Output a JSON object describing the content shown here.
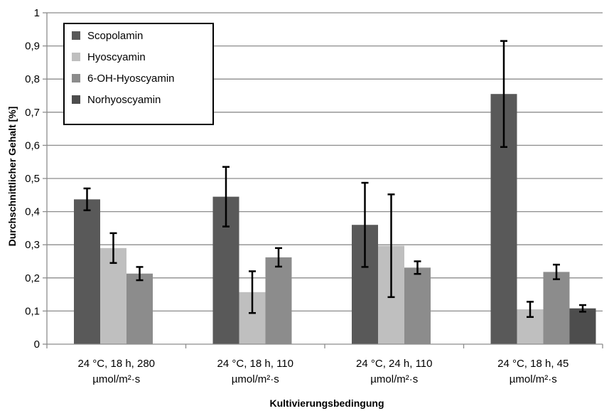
{
  "chart_data": {
    "type": "bar",
    "xlabel": "Kultivierungsbedingung",
    "ylabel": "Durchschnittlicher Gehalt [%]",
    "ylim": [
      0,
      1
    ],
    "yticks": [
      "0",
      "0,1",
      "0,2",
      "0,3",
      "0,4",
      "0,5",
      "0,6",
      "0,7",
      "0,8",
      "0,9",
      "1"
    ],
    "grid": true,
    "legend_position": "top-left",
    "categories": [
      [
        "24 °C, 18 h, 280",
        "µmol/m²·s"
      ],
      [
        "24 °C, 18 h, 110",
        "µmol/m²·s"
      ],
      [
        "24 °C, 24 h, 110",
        "µmol/m²·s"
      ],
      [
        "24 °C, 18 h, 45",
        "µmol/m²·s"
      ]
    ],
    "series": [
      {
        "name": "Scopolamin",
        "color": "#595959",
        "values": [
          0.437,
          0.445,
          0.36,
          0.755
        ],
        "errors": [
          0.033,
          0.09,
          0.127,
          0.16
        ]
      },
      {
        "name": "Hyoscyamin",
        "color": "#bfbfbf",
        "values": [
          0.29,
          0.157,
          0.297,
          0.105
        ],
        "errors": [
          0.045,
          0.063,
          0.155,
          0.023
        ]
      },
      {
        "name": "6-OH-Hyoscyamin",
        "color": "#8c8c8c",
        "values": [
          0.213,
          0.262,
          0.231,
          0.218
        ],
        "errors": [
          0.02,
          0.028,
          0.019,
          0.022
        ]
      },
      {
        "name": "Norhyoscyamin",
        "color": "#4d4d4d",
        "values": [
          null,
          null,
          null,
          0.108
        ],
        "errors": [
          null,
          null,
          null,
          0.01
        ]
      }
    ]
  }
}
